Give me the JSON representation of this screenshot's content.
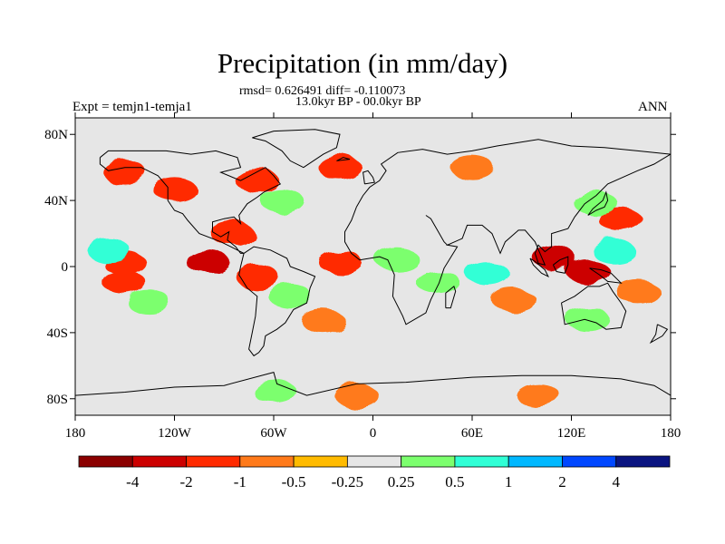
{
  "header": {
    "title": "Precipitation (in mm/day)",
    "stats": "rmsd= 0.626491 diff= -0.110073",
    "period": "13.0kyr BP - 00.0kyr BP",
    "experiment": "Expt = temjn1-temja1",
    "season": "ANN"
  },
  "axes": {
    "lat_ticks": [
      "80N",
      "40N",
      "0",
      "40S",
      "80S"
    ],
    "lat_values": [
      80,
      40,
      0,
      -40,
      -80
    ],
    "lon_ticks": [
      "180",
      "120W",
      "60W",
      "0",
      "60E",
      "120E",
      "180"
    ],
    "lon_values": [
      -180,
      -120,
      -60,
      0,
      60,
      120,
      180
    ],
    "lon_range": [
      -180,
      180
    ],
    "lat_range": [
      -90,
      90
    ]
  },
  "colorbar": {
    "labels": [
      "-4",
      "-2",
      "-1",
      "-0.5",
      "-0.25",
      "0.25",
      "0.5",
      "1",
      "2",
      "4"
    ],
    "levels": [
      -4,
      -2,
      -1,
      -0.5,
      -0.25,
      0.25,
      0.5,
      1,
      2,
      4
    ],
    "colors": [
      "#8b0000",
      "#cc0000",
      "#ff2a00",
      "#ff7a1a",
      "#ffbb00",
      "#e6e6e6",
      "#7cff6e",
      "#30ffd6",
      "#00b8ff",
      "#0047ff",
      "#0a1480"
    ]
  },
  "colors": {
    "background": "#e6e6e6",
    "coastline": "#000000"
  },
  "chart_data": {
    "type": "heatmap",
    "title": "Precipitation (in mm/day)",
    "variable": "Precipitation difference",
    "units": "mm/day",
    "xlim": [
      -180,
      180
    ],
    "ylim": [
      -90,
      90
    ],
    "anomaly_regions": [
      {
        "lon": -150,
        "lat": 2,
        "value": -1.5
      },
      {
        "lon": -100,
        "lat": 3,
        "value": -2
      },
      {
        "lon": -160,
        "lat": 10,
        "value": 1
      },
      {
        "lon": -150,
        "lat": -10,
        "value": -1
      },
      {
        "lon": -135,
        "lat": -22,
        "value": 0.5
      },
      {
        "lon": -120,
        "lat": 47,
        "value": -1
      },
      {
        "lon": -150,
        "lat": 57,
        "value": -1
      },
      {
        "lon": -70,
        "lat": 52,
        "value": -1.5
      },
      {
        "lon": -20,
        "lat": 60,
        "value": -1
      },
      {
        "lon": -85,
        "lat": 20,
        "value": -1.5
      },
      {
        "lon": -55,
        "lat": 40,
        "value": 0.5
      },
      {
        "lon": -70,
        "lat": -6,
        "value": -1
      },
      {
        "lon": -50,
        "lat": -18,
        "value": 0.5
      },
      {
        "lon": -30,
        "lat": -33,
        "value": -0.5
      },
      {
        "lon": -20,
        "lat": 3,
        "value": -1.5
      },
      {
        "lon": 15,
        "lat": 4,
        "value": 0.5
      },
      {
        "lon": 40,
        "lat": -10,
        "value": 0.5
      },
      {
        "lon": 70,
        "lat": -5,
        "value": 1
      },
      {
        "lon": 85,
        "lat": -20,
        "value": -0.5
      },
      {
        "lon": 60,
        "lat": 60,
        "value": -0.5
      },
      {
        "lon": 110,
        "lat": 5,
        "value": -2
      },
      {
        "lon": 130,
        "lat": -3,
        "value": -2
      },
      {
        "lon": 145,
        "lat": 10,
        "value": 1
      },
      {
        "lon": 150,
        "lat": 28,
        "value": -1
      },
      {
        "lon": 135,
        "lat": 38,
        "value": 0.5
      },
      {
        "lon": 160,
        "lat": -15,
        "value": -0.5
      },
      {
        "lon": 130,
        "lat": -32,
        "value": 0.5
      },
      {
        "lon": -60,
        "lat": -75,
        "value": 0.5
      },
      {
        "lon": -10,
        "lat": -78,
        "value": -0.5
      },
      {
        "lon": 100,
        "lat": -78,
        "value": -0.5
      }
    ]
  }
}
